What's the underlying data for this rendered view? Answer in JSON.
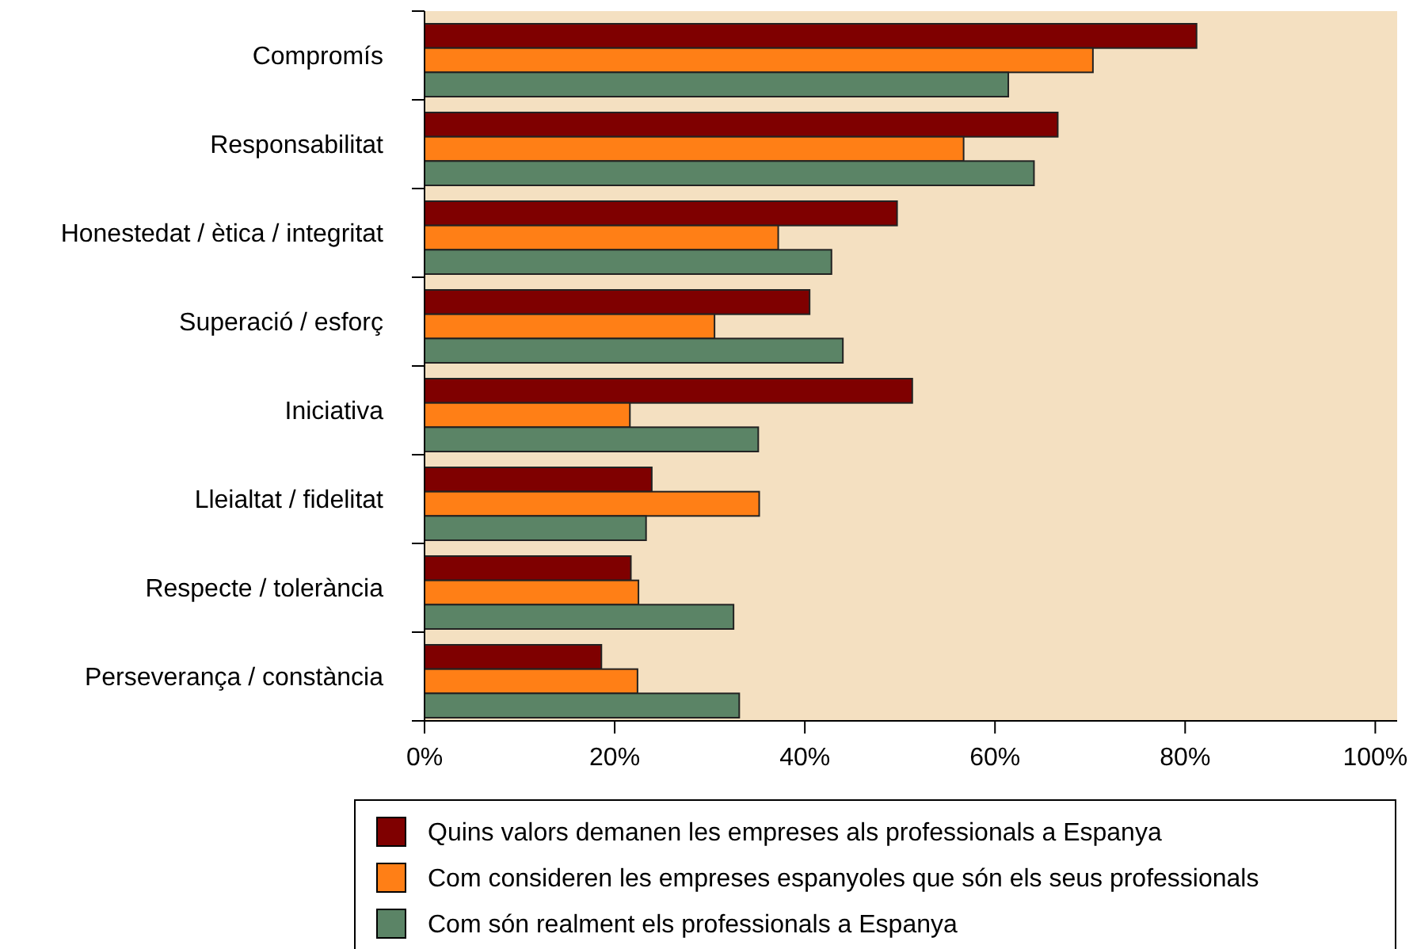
{
  "chart_data": {
    "type": "bar",
    "orientation": "horizontal",
    "categories": [
      "Compromís",
      "Responsabilitat",
      "Honestedat / ètica / integritat",
      "Superació / esforç",
      "Iniciativa",
      "Lleialtat / fidelitat",
      "Respecte / tolerància",
      "Perseverança / constància"
    ],
    "series": [
      {
        "name": "Quins valors demanen les empreses als professionals a Espanya",
        "color": "#7f0000",
        "values": [
          81.2,
          66.6,
          49.7,
          40.5,
          51.3,
          23.9,
          21.7,
          18.6
        ]
      },
      {
        "name": "Com consideren les empreses espanyoles que són els seus professionals",
        "color": "#ff7f16",
        "values": [
          70.3,
          56.7,
          37.2,
          30.5,
          21.6,
          35.2,
          22.5,
          22.4
        ]
      },
      {
        "name": "Com són realment els professionals a Espanya",
        "color": "#5b8466",
        "values": [
          61.4,
          64.1,
          42.8,
          44.0,
          35.1,
          23.3,
          32.5,
          33.1
        ]
      }
    ],
    "xlim": [
      0,
      102.3
    ],
    "xticks": [
      {
        "value": 0,
        "label": "0%"
      },
      {
        "value": 20,
        "label": "20%"
      },
      {
        "value": 40,
        "label": "40%"
      },
      {
        "value": 60,
        "label": "60%"
      },
      {
        "value": 80,
        "label": "80%"
      },
      {
        "value": 100,
        "label": "100%"
      }
    ],
    "grid": false,
    "legend": "bottom"
  }
}
